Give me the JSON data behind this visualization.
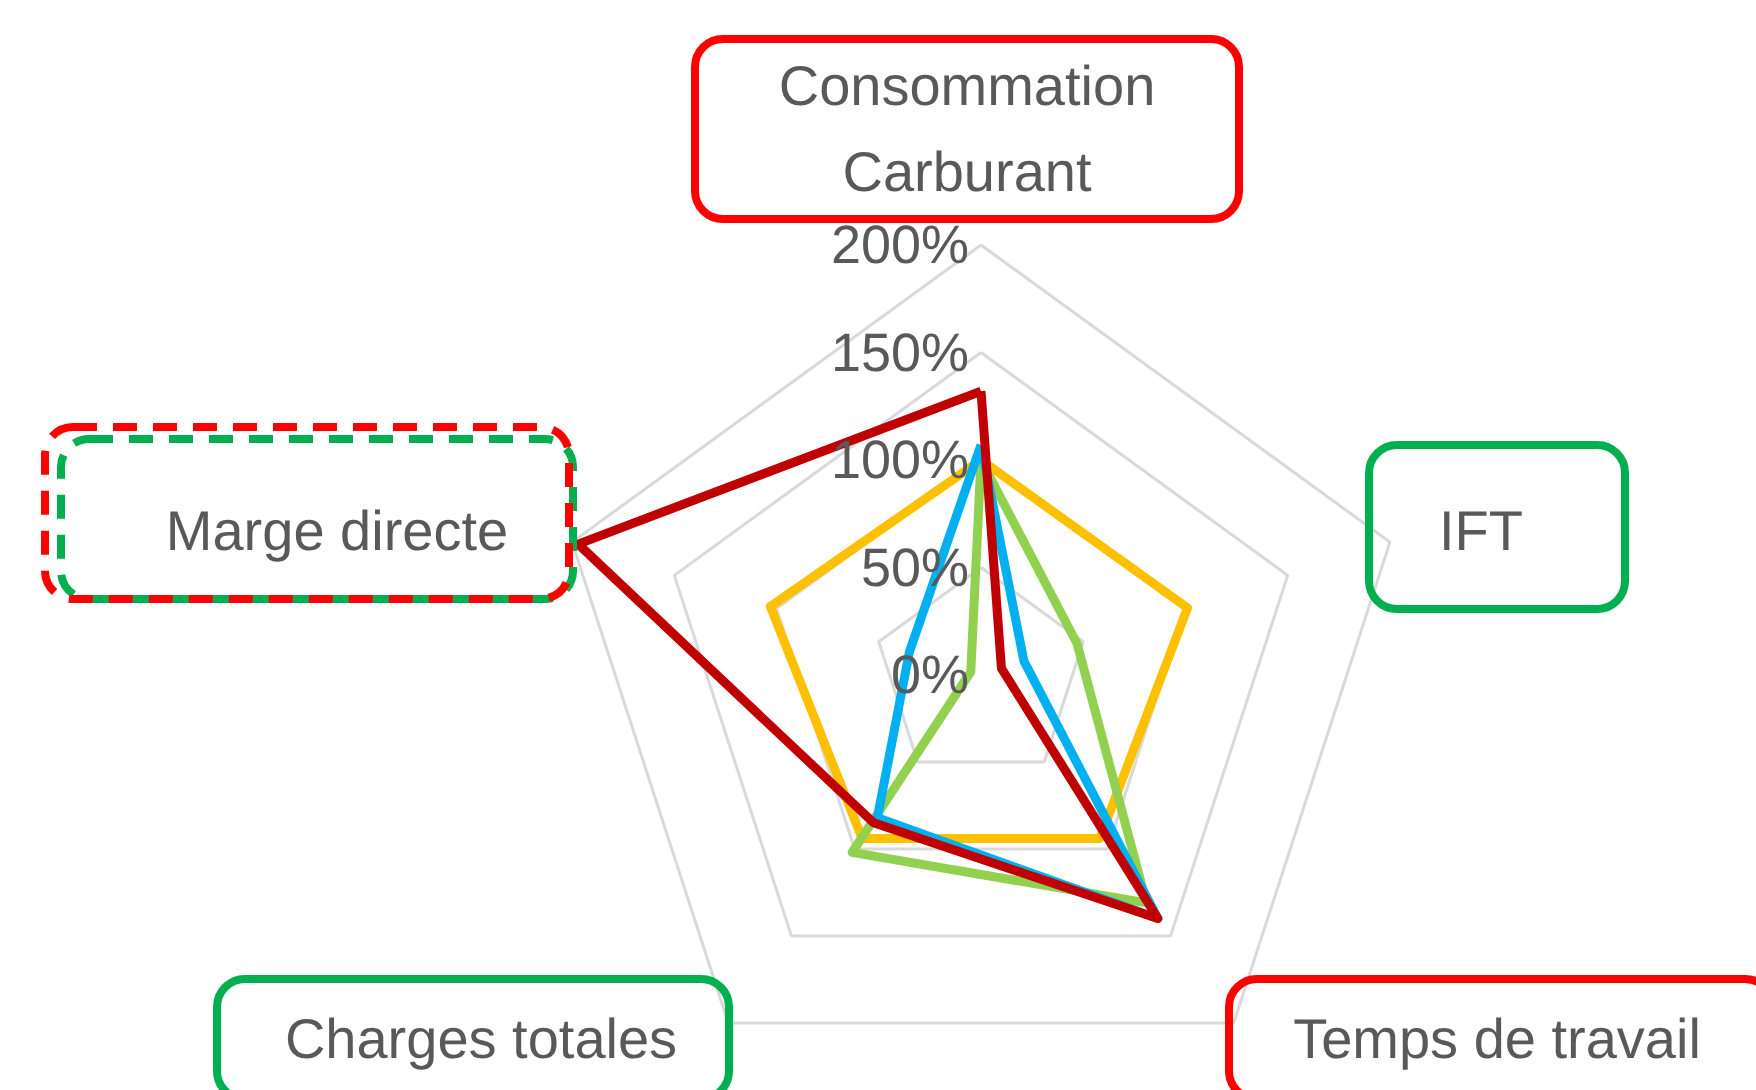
{
  "chart_data": {
    "type": "radar",
    "categories": [
      "Consommation Carburant",
      "IFT",
      "Temps de travail",
      "Charges totales",
      "Marge directe"
    ],
    "ylim": [
      0,
      200
    ],
    "yticks": [
      {
        "value": 0,
        "label": "0%"
      },
      {
        "value": 50,
        "label": "50%"
      },
      {
        "value": 100,
        "label": "100%"
      },
      {
        "value": 150,
        "label": "150%"
      },
      {
        "value": 200,
        "label": "200%"
      }
    ],
    "grid": true,
    "line_style": "solid",
    "marker": "none",
    "series": [
      {
        "color": "#ffc000",
        "values": [
          100,
          101,
          94,
          94,
          103
        ]
      },
      {
        "color": "#92d050",
        "values": [
          100,
          47,
          131,
          102,
          5
        ]
      },
      {
        "color": "#00b0f0",
        "values": [
          107,
          21,
          140,
          82,
          35
        ]
      },
      {
        "color": "#c00000",
        "values": [
          132,
          10,
          140,
          85,
          197
        ]
      }
    ]
  }
}
